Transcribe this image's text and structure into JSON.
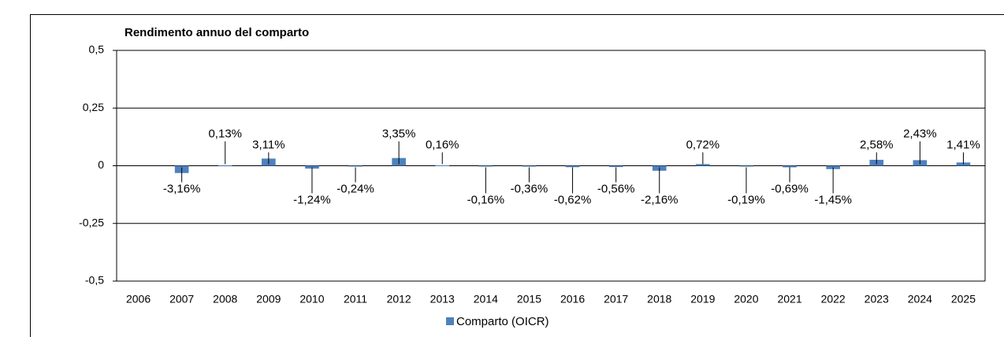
{
  "chart_data": {
    "type": "bar",
    "title": "Rendimento annuo del comparto",
    "categories": [
      "2006",
      "2007",
      "2008",
      "2009",
      "2010",
      "2011",
      "2012",
      "2013",
      "2014",
      "2015",
      "2016",
      "2017",
      "2018",
      "2019",
      "2020",
      "2021",
      "2022",
      "2023",
      "2024",
      "2025"
    ],
    "series": [
      {
        "name": "Comparto (OICR)",
        "color": "#4f81bd",
        "values": [
          null,
          -0.0316,
          0.0013,
          0.0311,
          -0.0124,
          -0.0024,
          0.0335,
          0.0016,
          -0.0016,
          -0.0036,
          -0.0062,
          -0.0056,
          -0.0216,
          0.0072,
          -0.0019,
          -0.0069,
          -0.0145,
          0.0258,
          0.0243,
          0.0141
        ],
        "value_labels": [
          null,
          "-3,16%",
          "0,13%",
          "3,11%",
          "-1,24%",
          "-0,24%",
          "3,35%",
          "0,16%",
          "-0,16%",
          "-0,36%",
          "-0,62%",
          "-0,56%",
          "-2,16%",
          "0,72%",
          "-0,19%",
          "-0,69%",
          "-1,45%",
          "2,58%",
          "2,43%",
          "1,41%"
        ]
      }
    ],
    "ylim": [
      -0.5,
      0.5
    ],
    "yticks": [
      {
        "value": -0.5,
        "label": "-0,5"
      },
      {
        "value": -0.25,
        "label": "-0,25"
      },
      0,
      {
        "value": 0.25,
        "label": "0,25"
      },
      {
        "value": 0.5,
        "label": "0,5"
      }
    ],
    "grid": true,
    "legend": "bottom"
  }
}
